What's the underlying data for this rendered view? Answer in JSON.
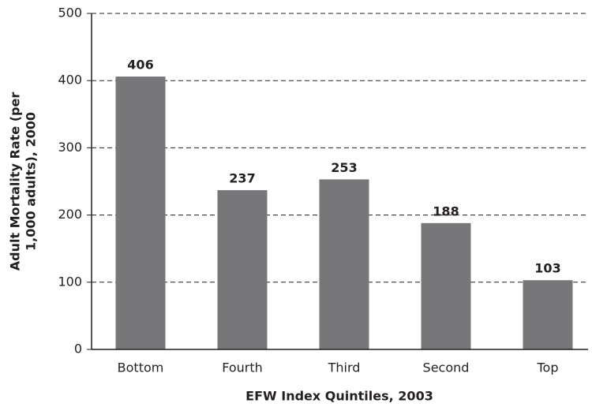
{
  "chart_data": {
    "type": "bar",
    "xlabel": "EFW Index Quintiles, 2003",
    "ylabel": [
      "Adult Mortality Rate (per",
      "1,000 adults), 2000"
    ],
    "categories": [
      "Bottom",
      "Fourth",
      "Third",
      "Second",
      "Top"
    ],
    "values": [
      406,
      237,
      253,
      188,
      103
    ],
    "color": "#77777a",
    "ylim": [
      0,
      500
    ],
    "yticks": [
      0,
      100,
      200,
      300,
      400,
      500
    ],
    "grid": true
  }
}
